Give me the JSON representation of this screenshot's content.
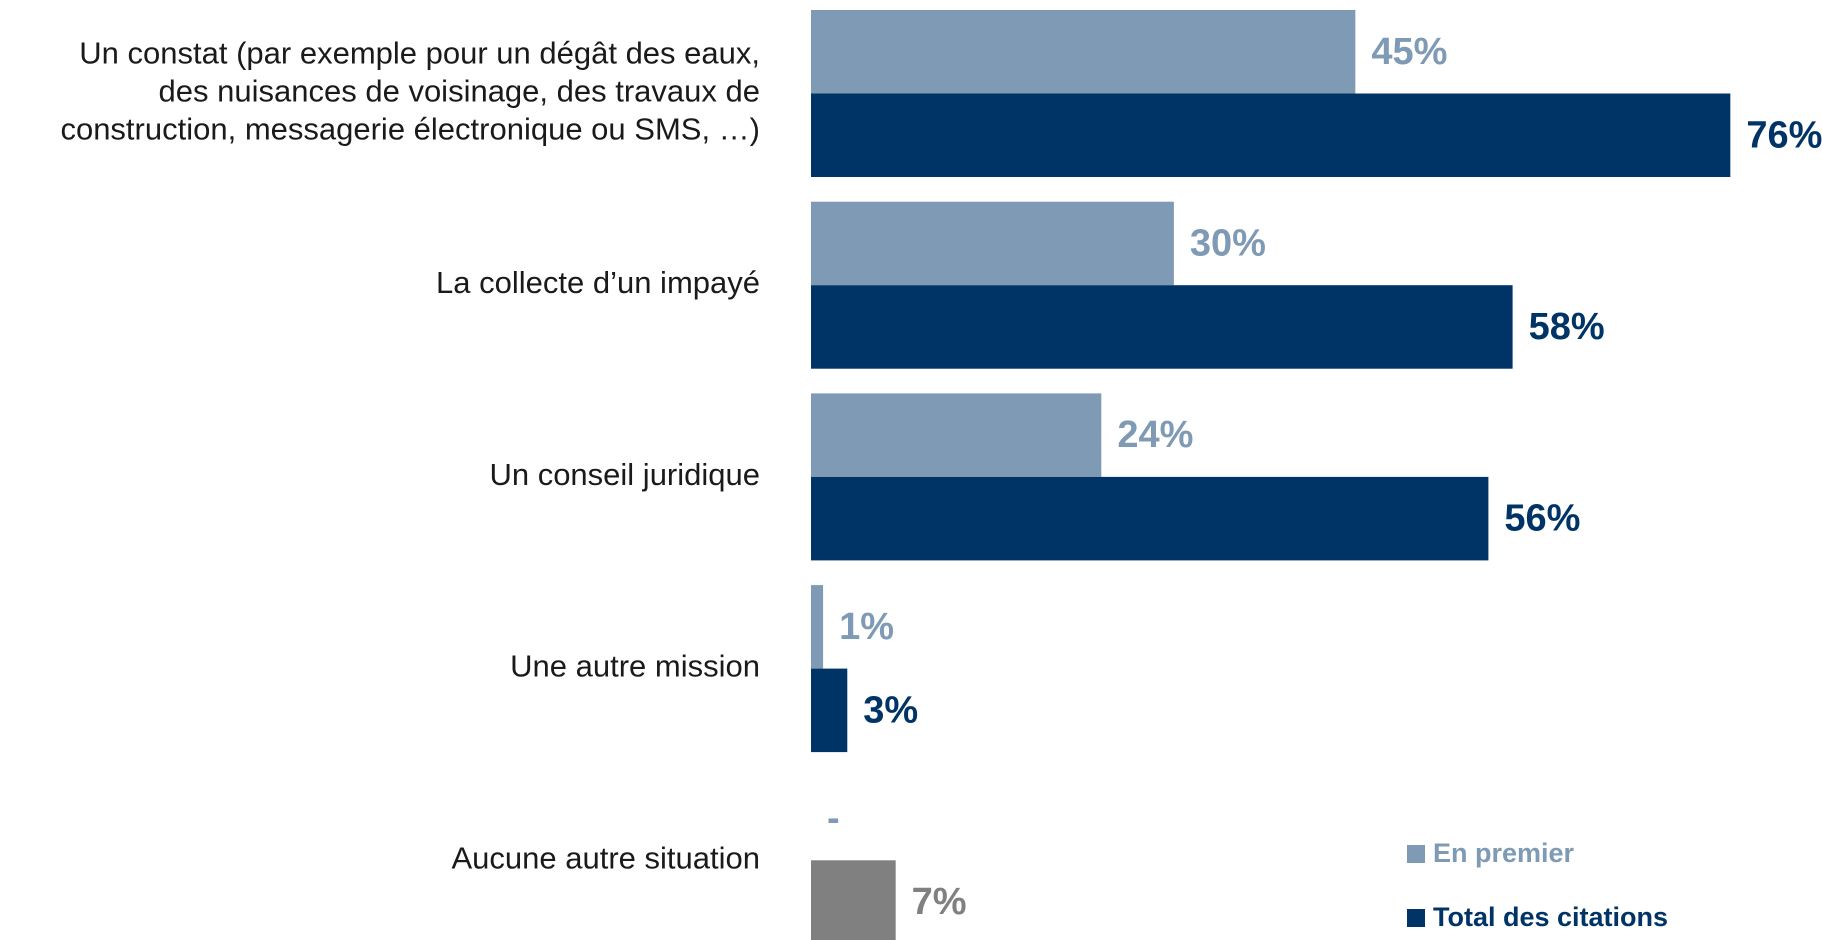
{
  "chart_data": {
    "type": "bar",
    "orientation": "horizontal",
    "categories": [
      [
        "Un constat (par exemple pour un dégât des eaux,",
        "des nuisances de voisinage, des travaux de",
        "construction, messagerie électronique ou SMS, …)"
      ],
      [
        "La collecte d’un impayé"
      ],
      [
        "Un conseil juridique"
      ],
      [
        "Une autre mission"
      ],
      [
        "Aucune autre situation"
      ]
    ],
    "series": [
      {
        "name": "En premier",
        "color": "#7f9ab5",
        "values": [
          45,
          30,
          24,
          1,
          null
        ],
        "value_labels": [
          "45%",
          "30%",
          "24%",
          "1%",
          "-"
        ]
      },
      {
        "name": "Total des citations",
        "color": "#003466",
        "colors": [
          "#003466",
          "#003466",
          "#003466",
          "#003466",
          "#808080"
        ],
        "values": [
          76,
          58,
          56,
          3,
          7
        ],
        "value_labels": [
          "76%",
          "58%",
          "56%",
          "3%",
          "7%"
        ]
      }
    ],
    "legend": "bottom-right"
  }
}
